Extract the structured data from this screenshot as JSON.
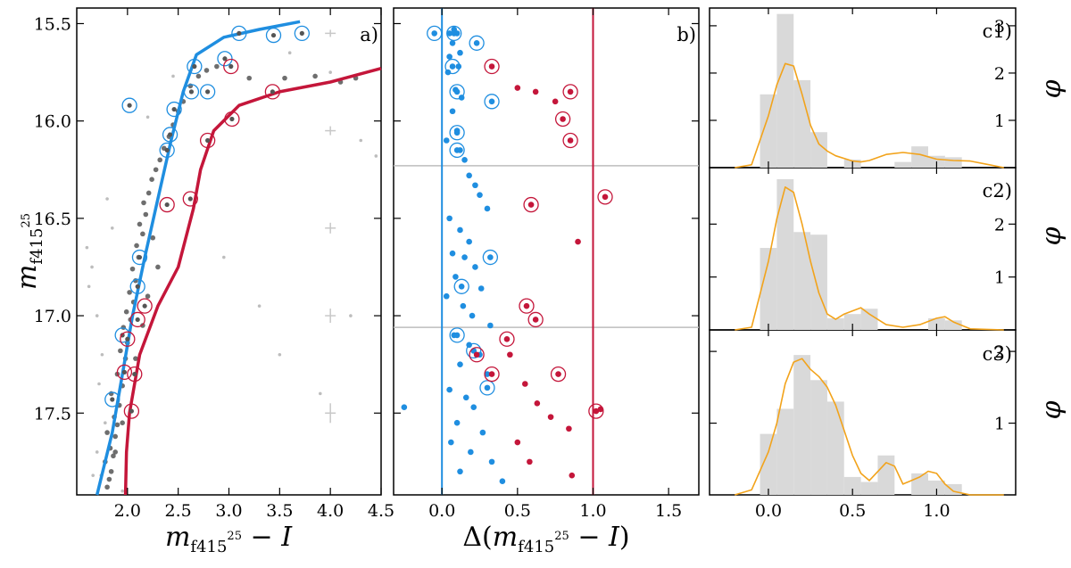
{
  "colors": {
    "blue": "#1f8ee0",
    "red": "#c4163a",
    "orange": "#f2a31b",
    "hist": "#d9d9d9",
    "grey": "#555555",
    "lightgrey": "#bdbdbd"
  },
  "chart_data": [
    {
      "panel": "a",
      "type": "scatter",
      "label": "a)",
      "xlabel": "m_f415^25 − I",
      "ylabel": "m_f415^25",
      "xlim": [
        1.5,
        4.5
      ],
      "ylim": [
        17.92,
        15.42
      ],
      "xticks": [
        "2.0",
        "2.5",
        "3.0",
        "3.5",
        "4.0",
        "4.5"
      ],
      "yticks": [
        "15.5",
        "16.0",
        "16.5",
        "17.0",
        "17.5"
      ],
      "fiducial_blue": [
        [
          1.7,
          17.92
        ],
        [
          1.85,
          17.6
        ],
        [
          1.95,
          17.3
        ],
        [
          2.05,
          17.0
        ],
        [
          2.17,
          16.7
        ],
        [
          2.3,
          16.4
        ],
        [
          2.43,
          16.1
        ],
        [
          2.55,
          15.85
        ],
        [
          2.68,
          15.66
        ],
        [
          2.95,
          15.57
        ],
        [
          3.3,
          15.53
        ],
        [
          3.7,
          15.49
        ]
      ],
      "fiducial_red": [
        [
          1.98,
          17.92
        ],
        [
          1.99,
          17.7
        ],
        [
          2.02,
          17.5
        ],
        [
          2.12,
          17.2
        ],
        [
          2.3,
          16.95
        ],
        [
          2.5,
          16.75
        ],
        [
          2.65,
          16.45
        ],
        [
          2.72,
          16.25
        ],
        [
          2.85,
          16.05
        ],
        [
          3.1,
          15.92
        ],
        [
          3.5,
          15.85
        ],
        [
          4.0,
          15.8
        ],
        [
          4.5,
          15.73
        ]
      ],
      "circled_blue": [
        [
          2.02,
          15.92
        ],
        [
          3.1,
          15.55
        ],
        [
          3.44,
          15.56
        ],
        [
          3.72,
          15.55
        ],
        [
          2.66,
          15.72
        ],
        [
          2.96,
          15.68
        ],
        [
          2.63,
          15.85
        ],
        [
          2.79,
          15.85
        ],
        [
          2.46,
          15.94
        ],
        [
          2.42,
          16.07
        ],
        [
          2.39,
          16.15
        ],
        [
          2.12,
          16.7
        ],
        [
          2.1,
          16.85
        ],
        [
          1.95,
          17.1
        ],
        [
          1.85,
          17.43
        ]
      ],
      "circled_red": [
        [
          3.43,
          15.85
        ],
        [
          3.02,
          15.72
        ],
        [
          3.03,
          15.99
        ],
        [
          2.79,
          16.1
        ],
        [
          2.62,
          16.4
        ],
        [
          2.39,
          16.43
        ],
        [
          2.17,
          16.95
        ],
        [
          2.1,
          17.02
        ],
        [
          2.0,
          17.12
        ],
        [
          1.97,
          17.29
        ],
        [
          2.07,
          17.3
        ],
        [
          2.04,
          17.49
        ]
      ],
      "dots_dark": [
        [
          1.8,
          17.88
        ],
        [
          1.82,
          17.84
        ],
        [
          1.84,
          17.8
        ],
        [
          1.78,
          17.75
        ],
        [
          1.86,
          17.72
        ],
        [
          1.83,
          17.68
        ],
        [
          1.88,
          17.62
        ],
        [
          1.8,
          17.6
        ],
        [
          1.9,
          17.56
        ],
        [
          1.87,
          17.52
        ],
        [
          1.92,
          17.46
        ],
        [
          1.84,
          17.4
        ],
        [
          1.95,
          17.36
        ],
        [
          1.9,
          17.3
        ],
        [
          1.98,
          17.22
        ],
        [
          1.93,
          17.18
        ],
        [
          2.0,
          17.14
        ],
        [
          1.96,
          17.06
        ],
        [
          2.03,
          17.02
        ],
        [
          1.99,
          16.98
        ],
        [
          2.06,
          16.93
        ],
        [
          2.02,
          16.88
        ],
        [
          2.08,
          16.82
        ],
        [
          2.05,
          16.76
        ],
        [
          2.11,
          16.7
        ],
        [
          2.09,
          16.64
        ],
        [
          2.15,
          16.58
        ],
        [
          2.12,
          16.53
        ],
        [
          2.18,
          16.48
        ],
        [
          2.16,
          16.42
        ],
        [
          2.21,
          16.37
        ],
        [
          2.24,
          16.3
        ],
        [
          2.28,
          16.25
        ],
        [
          2.32,
          16.2
        ],
        [
          2.36,
          16.14
        ],
        [
          2.41,
          16.08
        ],
        [
          2.45,
          16.02
        ],
        [
          2.5,
          15.95
        ],
        [
          2.55,
          15.9
        ],
        [
          2.62,
          15.82
        ],
        [
          2.7,
          15.77
        ],
        [
          2.78,
          15.74
        ],
        [
          2.88,
          15.72
        ],
        [
          3.2,
          15.78
        ],
        [
          3.55,
          15.78
        ],
        [
          3.85,
          15.77
        ],
        [
          4.1,
          15.8
        ],
        [
          4.25,
          15.78
        ],
        [
          2.25,
          16.6
        ],
        [
          2.3,
          16.75
        ],
        [
          2.2,
          16.9
        ],
        [
          2.15,
          17.05
        ],
        [
          2.08,
          17.22
        ],
        [
          1.95,
          17.55
        ],
        [
          1.88,
          17.7
        ]
      ],
      "dots_light": [
        [
          1.6,
          16.65
        ],
        [
          1.65,
          16.75
        ],
        [
          1.62,
          16.85
        ],
        [
          1.7,
          17.0
        ],
        [
          1.75,
          17.2
        ],
        [
          1.72,
          17.35
        ],
        [
          1.78,
          17.55
        ],
        [
          1.7,
          17.7
        ],
        [
          1.66,
          17.82
        ],
        [
          1.85,
          16.55
        ],
        [
          1.8,
          16.4
        ],
        [
          2.2,
          15.98
        ],
        [
          2.45,
          15.77
        ],
        [
          3.6,
          15.65
        ],
        [
          4.0,
          15.75
        ],
        [
          4.3,
          16.1
        ],
        [
          4.45,
          16.18
        ],
        [
          2.95,
          16.7
        ],
        [
          3.3,
          16.95
        ],
        [
          3.5,
          17.2
        ],
        [
          3.9,
          17.4
        ],
        [
          4.2,
          17.0
        ],
        [
          1.74,
          17.82
        ],
        [
          1.95,
          17.9
        ]
      ]
    },
    {
      "panel": "b",
      "type": "scatter",
      "label": "b)",
      "xlabel": "Δ(m_f415^25 − I)",
      "xlim": [
        -0.32,
        1.7
      ],
      "ylim": [
        17.92,
        15.42
      ],
      "xticks": [
        "0.0",
        "0.5",
        "1.0",
        "1.5"
      ],
      "vlines": [
        0.0,
        1.0
      ],
      "hlines": [
        16.23,
        17.06
      ],
      "blue_points": [
        [
          0.05,
          15.55
        ],
        [
          0.08,
          15.53
        ],
        [
          0.1,
          15.55
        ],
        [
          0.07,
          15.6
        ],
        [
          0.12,
          15.65
        ],
        [
          0.05,
          15.67
        ],
        [
          0.11,
          15.72
        ],
        [
          0.04,
          15.75
        ],
        [
          0.09,
          15.84
        ],
        [
          0.13,
          15.88
        ],
        [
          0.07,
          15.95
        ],
        [
          0.1,
          16.05
        ],
        [
          0.03,
          16.1
        ],
        [
          0.12,
          16.15
        ],
        [
          0.15,
          16.2
        ],
        [
          0.18,
          16.28
        ],
        [
          0.22,
          16.33
        ],
        [
          0.25,
          16.38
        ],
        [
          0.3,
          16.45
        ],
        [
          0.05,
          16.5
        ],
        [
          0.12,
          16.56
        ],
        [
          0.18,
          16.62
        ],
        [
          0.07,
          16.68
        ],
        [
          0.15,
          16.7
        ],
        [
          0.22,
          16.75
        ],
        [
          0.09,
          16.8
        ],
        [
          0.26,
          16.86
        ],
        [
          0.03,
          16.9
        ],
        [
          0.14,
          16.95
        ],
        [
          0.2,
          17.0
        ],
        [
          0.32,
          17.05
        ],
        [
          0.08,
          17.1
        ],
        [
          0.18,
          17.15
        ],
        [
          0.25,
          17.2
        ],
        [
          0.12,
          17.25
        ],
        [
          0.3,
          17.3
        ],
        [
          0.05,
          17.38
        ],
        [
          0.16,
          17.42
        ],
        [
          0.21,
          17.47
        ],
        [
          0.1,
          17.55
        ],
        [
          0.27,
          17.6
        ],
        [
          0.06,
          17.65
        ],
        [
          0.19,
          17.7
        ],
        [
          0.33,
          17.75
        ],
        [
          0.12,
          17.8
        ],
        [
          -0.25,
          17.47
        ],
        [
          0.4,
          17.85
        ]
      ],
      "red_points": [
        [
          0.5,
          15.83
        ],
        [
          0.62,
          15.85
        ],
        [
          0.75,
          15.9
        ],
        [
          0.9,
          16.62
        ],
        [
          1.05,
          17.48
        ],
        [
          0.45,
          17.2
        ],
        [
          0.55,
          17.35
        ],
        [
          0.63,
          17.45
        ],
        [
          0.72,
          17.52
        ],
        [
          0.84,
          17.58
        ],
        [
          0.5,
          17.65
        ],
        [
          0.58,
          17.75
        ],
        [
          0.86,
          17.82
        ]
      ],
      "circled_blue": [
        [
          -0.05,
          15.55
        ],
        [
          0.08,
          15.55
        ],
        [
          0.23,
          15.6
        ],
        [
          0.07,
          15.72
        ],
        [
          0.1,
          15.85
        ],
        [
          0.33,
          15.9
        ],
        [
          0.1,
          16.06
        ],
        [
          0.1,
          16.15
        ],
        [
          0.32,
          16.7
        ],
        [
          0.13,
          16.85
        ],
        [
          0.1,
          17.1
        ],
        [
          0.21,
          17.18
        ],
        [
          0.3,
          17.37
        ]
      ],
      "circled_red": [
        [
          0.33,
          15.72
        ],
        [
          0.85,
          15.85
        ],
        [
          0.8,
          15.99
        ],
        [
          0.85,
          16.1
        ],
        [
          0.59,
          16.43
        ],
        [
          1.08,
          16.39
        ],
        [
          0.56,
          16.95
        ],
        [
          0.62,
          17.02
        ],
        [
          0.43,
          17.12
        ],
        [
          0.23,
          17.2
        ],
        [
          0.33,
          17.3
        ],
        [
          0.77,
          17.3
        ],
        [
          1.02,
          17.49
        ]
      ]
    },
    {
      "panel": "c1",
      "type": "histogram+kde",
      "label": "c1)",
      "ylabel": "φ",
      "xlim": [
        -0.35,
        1.47
      ],
      "ylim": [
        0,
        3.3
      ],
      "yticks": [
        "1",
        "2",
        "3"
      ],
      "bins": [
        [
          -0.05,
          0.05,
          1.55
        ],
        [
          0.05,
          0.15,
          3.25
        ],
        [
          0.15,
          0.25,
          1.85
        ],
        [
          0.25,
          0.35,
          0.75
        ],
        [
          0.45,
          0.55,
          0.17
        ],
        [
          0.75,
          0.85,
          0.12
        ],
        [
          0.85,
          0.95,
          0.45
        ],
        [
          0.95,
          1.05,
          0.25
        ],
        [
          1.05,
          1.15,
          0.22
        ]
      ],
      "kde": [
        [
          -0.2,
          0.0
        ],
        [
          -0.1,
          0.06
        ],
        [
          0.0,
          1.1
        ],
        [
          0.05,
          1.75
        ],
        [
          0.1,
          2.2
        ],
        [
          0.15,
          2.15
        ],
        [
          0.2,
          1.55
        ],
        [
          0.25,
          0.9
        ],
        [
          0.3,
          0.5
        ],
        [
          0.35,
          0.35
        ],
        [
          0.4,
          0.25
        ],
        [
          0.5,
          0.14
        ],
        [
          0.55,
          0.12
        ],
        [
          0.6,
          0.15
        ],
        [
          0.7,
          0.28
        ],
        [
          0.8,
          0.32
        ],
        [
          0.9,
          0.28
        ],
        [
          1.0,
          0.18
        ],
        [
          1.1,
          0.15
        ],
        [
          1.2,
          0.14
        ],
        [
          1.3,
          0.07
        ],
        [
          1.4,
          0.0
        ]
      ]
    },
    {
      "panel": "c2",
      "type": "histogram+kde",
      "label": "c2)",
      "ylabel": "φ",
      "xlim": [
        -0.35,
        1.47
      ],
      "ylim": [
        0,
        3.0
      ],
      "yticks": [
        "1",
        "2"
      ],
      "bins": [
        [
          -0.05,
          0.05,
          1.55
        ],
        [
          0.05,
          0.15,
          2.85
        ],
        [
          0.15,
          0.25,
          1.85
        ],
        [
          0.25,
          0.35,
          1.8
        ],
        [
          0.35,
          0.45,
          0.22
        ],
        [
          0.45,
          0.55,
          0.3
        ],
        [
          0.55,
          0.65,
          0.4
        ],
        [
          0.95,
          1.05,
          0.22
        ],
        [
          1.05,
          1.15,
          0.18
        ]
      ],
      "kde": [
        [
          -0.2,
          0.0
        ],
        [
          -0.1,
          0.05
        ],
        [
          0.0,
          1.3
        ],
        [
          0.05,
          2.1
        ],
        [
          0.1,
          2.7
        ],
        [
          0.15,
          2.6
        ],
        [
          0.2,
          2.0
        ],
        [
          0.25,
          1.3
        ],
        [
          0.3,
          0.7
        ],
        [
          0.35,
          0.3
        ],
        [
          0.4,
          0.2
        ],
        [
          0.45,
          0.3
        ],
        [
          0.55,
          0.42
        ],
        [
          0.6,
          0.3
        ],
        [
          0.7,
          0.1
        ],
        [
          0.8,
          0.05
        ],
        [
          0.9,
          0.1
        ],
        [
          1.0,
          0.22
        ],
        [
          1.05,
          0.25
        ],
        [
          1.1,
          0.15
        ],
        [
          1.2,
          0.02
        ],
        [
          1.4,
          0.0
        ]
      ]
    },
    {
      "panel": "c3",
      "type": "histogram+kde",
      "label": "c3)",
      "ylabel": "φ",
      "xlim": [
        -0.35,
        1.47
      ],
      "ylim": [
        0,
        2.25
      ],
      "yticks": [
        "1",
        "2"
      ],
      "bins": [
        [
          -0.05,
          0.05,
          0.85
        ],
        [
          0.05,
          0.15,
          1.2
        ],
        [
          0.15,
          0.25,
          1.95
        ],
        [
          0.25,
          0.35,
          1.6
        ],
        [
          0.35,
          0.45,
          1.3
        ],
        [
          0.45,
          0.55,
          0.25
        ],
        [
          0.55,
          0.65,
          0.18
        ],
        [
          0.65,
          0.75,
          0.55
        ],
        [
          0.85,
          0.95,
          0.3
        ],
        [
          0.95,
          1.05,
          0.2
        ],
        [
          1.05,
          1.15,
          0.15
        ]
      ],
      "kde": [
        [
          -0.2,
          0.0
        ],
        [
          -0.1,
          0.07
        ],
        [
          0.0,
          0.6
        ],
        [
          0.05,
          1.0
        ],
        [
          0.1,
          1.55
        ],
        [
          0.15,
          1.85
        ],
        [
          0.2,
          1.9
        ],
        [
          0.25,
          1.75
        ],
        [
          0.3,
          1.65
        ],
        [
          0.35,
          1.5
        ],
        [
          0.4,
          1.25
        ],
        [
          0.45,
          0.9
        ],
        [
          0.5,
          0.55
        ],
        [
          0.55,
          0.3
        ],
        [
          0.6,
          0.2
        ],
        [
          0.7,
          0.45
        ],
        [
          0.75,
          0.4
        ],
        [
          0.8,
          0.15
        ],
        [
          0.9,
          0.25
        ],
        [
          0.95,
          0.33
        ],
        [
          1.0,
          0.3
        ],
        [
          1.05,
          0.15
        ],
        [
          1.1,
          0.05
        ],
        [
          1.2,
          0.0
        ],
        [
          1.4,
          0.0
        ]
      ]
    },
    {
      "panel": "c-xaxis",
      "xticks": [
        "0.0",
        "0.5",
        "1.0"
      ]
    }
  ]
}
